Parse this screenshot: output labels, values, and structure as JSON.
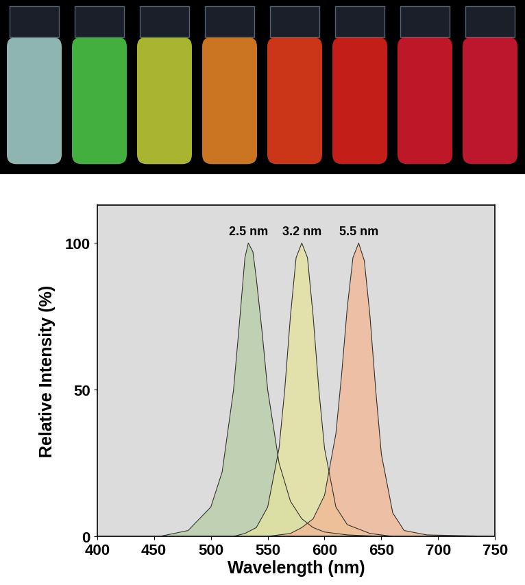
{
  "chart_data": {
    "type": "area",
    "xlabel": "Wavelength (nm)",
    "ylabel": "Relative Intensity (%)",
    "xlim": [
      400,
      750
    ],
    "xticks": [
      400,
      450,
      500,
      550,
      600,
      650,
      700,
      750
    ],
    "ylim": [
      0,
      113
    ],
    "yticks": [
      0,
      50,
      100
    ],
    "grid": false,
    "data_labels": false,
    "series": [
      {
        "name": "2.5 nm",
        "color": "#b9cfa9",
        "x": [
          455,
          480,
          500,
          510,
          520,
          525,
          530,
          533,
          537,
          540,
          545,
          550,
          560,
          570,
          580,
          590,
          600,
          620,
          650
        ],
        "values": [
          0,
          2,
          10,
          22,
          50,
          72,
          95,
          100,
          97,
          88,
          70,
          50,
          25,
          12,
          6,
          3,
          1.5,
          0.5,
          0
        ]
      },
      {
        "name": "3.2 nm",
        "color": "#e4e3a0",
        "x": [
          520,
          530,
          540,
          550,
          560,
          565,
          570,
          575,
          580,
          585,
          590,
          595,
          600,
          610,
          620,
          640,
          660
        ],
        "values": [
          0,
          1,
          3,
          10,
          30,
          50,
          75,
          95,
          100,
          95,
          75,
          50,
          30,
          10,
          4,
          1,
          0
        ]
      },
      {
        "name": "5.5 nm",
        "color": "#f2b896",
        "x": [
          550,
          570,
          580,
          590,
          600,
          610,
          615,
          620,
          625,
          630,
          635,
          640,
          645,
          650,
          660,
          670,
          690,
          750
        ],
        "values": [
          0,
          1,
          3,
          6,
          14,
          35,
          55,
          78,
          95,
          100,
          94,
          75,
          50,
          28,
          8,
          2,
          0.5,
          0
        ]
      }
    ]
  }
}
